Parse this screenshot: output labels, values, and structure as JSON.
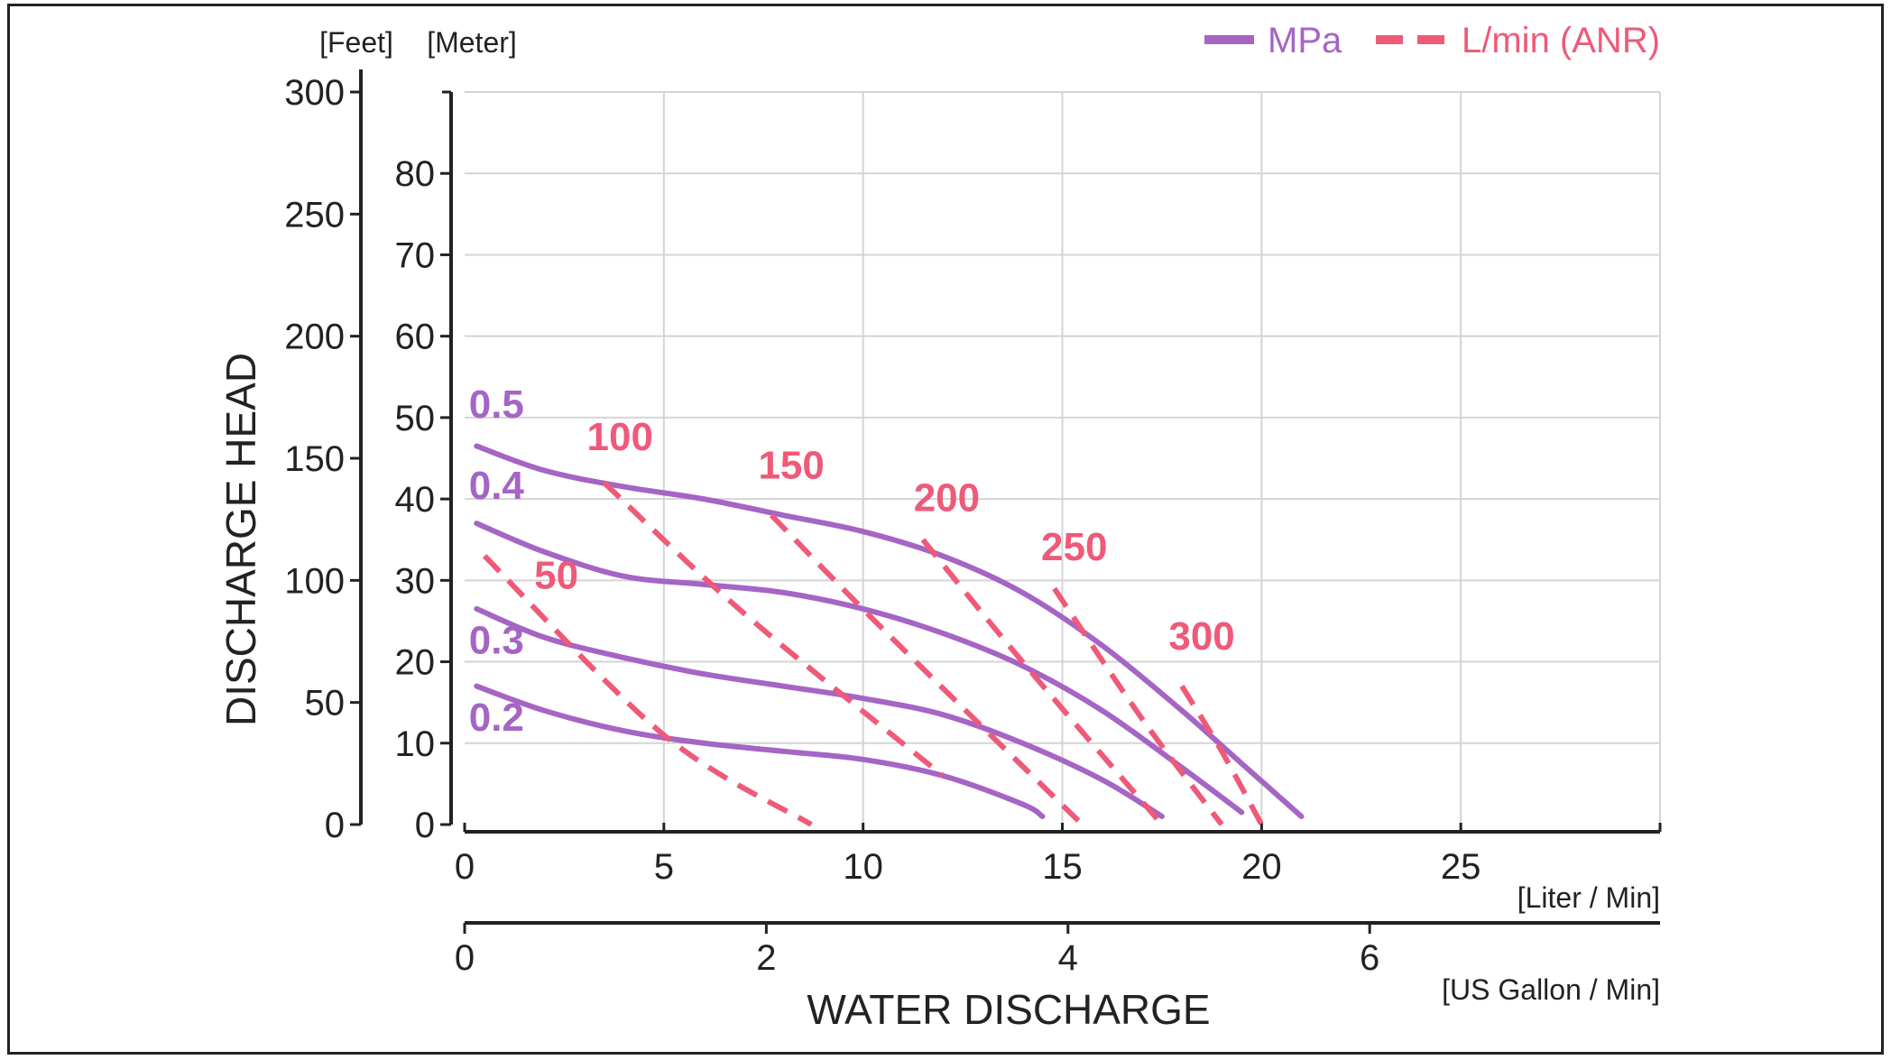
{
  "chart_data": {
    "type": "line",
    "xlabel": "WATER DISCHARGE",
    "ylabel": "DISCHARGE HEAD",
    "x_unit_primary": "[Liter / Min]",
    "x_unit_secondary": "[US Gallon / Min]",
    "y_unit_left": "[Feet]",
    "y_unit_right": "[Meter]",
    "x_ticks": [
      "0",
      "5",
      "10",
      "15",
      "20",
      "25"
    ],
    "x_range": [
      0,
      30
    ],
    "x2_ticks": [
      "0",
      "2",
      "4",
      "6"
    ],
    "x2_range": [
      0,
      7.925
    ],
    "y_ticks_meter": [
      "0",
      "10",
      "20",
      "30",
      "40",
      "50",
      "60",
      "70",
      "80"
    ],
    "y_range_meter": [
      0,
      90
    ],
    "y_ticks_feet": [
      "0",
      "50",
      "100",
      "150",
      "200",
      "250",
      "300"
    ],
    "y_range_feet": [
      0,
      300
    ],
    "grid": true,
    "legend": {
      "position": "top-right",
      "items": [
        {
          "label": "MPa",
          "style": "solid",
          "color": "#a565c4"
        },
        {
          "label": "L/min (ANR)",
          "style": "dashed",
          "color": "#ee5a78"
        }
      ]
    },
    "series": [
      {
        "name": "0.5",
        "group": "MPa",
        "color": "#a565c4",
        "x": [
          0.3,
          2,
          4,
          6,
          8,
          10,
          12,
          14,
          16,
          18,
          19.5,
          21
        ],
        "y": [
          46.5,
          43.5,
          41.5,
          40,
          38,
          36,
          33,
          28.5,
          22,
          14,
          7.5,
          1
        ]
      },
      {
        "name": "0.4",
        "group": "MPa",
        "color": "#a565c4",
        "x": [
          0.3,
          2,
          4,
          6,
          8,
          10,
          12,
          14,
          16,
          18,
          19.5
        ],
        "y": [
          37,
          33.5,
          30.5,
          29.5,
          28.5,
          26.5,
          23.5,
          19.5,
          14,
          7,
          1.5
        ]
      },
      {
        "name": "0.3",
        "group": "MPa",
        "color": "#a565c4",
        "x": [
          0.3,
          2,
          4,
          6,
          8,
          10,
          12,
          14,
          16,
          17.5
        ],
        "y": [
          26.5,
          23,
          20.5,
          18.5,
          17,
          15.5,
          13.5,
          10,
          5.5,
          1
        ]
      },
      {
        "name": "0.2",
        "group": "MPa",
        "color": "#a565c4",
        "x": [
          0.3,
          2,
          4,
          6,
          8,
          10,
          12,
          14,
          14.5
        ],
        "y": [
          17,
          14,
          11.5,
          10,
          9,
          8,
          6,
          2.5,
          1
        ]
      },
      {
        "name": "50",
        "group": "L/min (ANR)",
        "color": "#ee5a78",
        "dashed": true,
        "x": [
          0.5,
          5,
          8.7
        ],
        "y": [
          33,
          11,
          0
        ]
      },
      {
        "name": "100",
        "group": "L/min (ANR)",
        "color": "#ee5a78",
        "dashed": true,
        "x": [
          3.5,
          7,
          12
        ],
        "y": [
          42,
          26,
          6
        ]
      },
      {
        "name": "150",
        "group": "L/min (ANR)",
        "color": "#ee5a78",
        "dashed": true,
        "x": [
          7.7,
          10.5,
          15.5
        ],
        "y": [
          38,
          24,
          0
        ]
      },
      {
        "name": "200",
        "group": "L/min (ANR)",
        "color": "#ee5a78",
        "dashed": true,
        "x": [
          11.5,
          14,
          17.5
        ],
        "y": [
          35,
          20,
          0
        ]
      },
      {
        "name": "250",
        "group": "L/min (ANR)",
        "color": "#ee5a78",
        "dashed": true,
        "x": [
          14.8,
          17,
          19
        ],
        "y": [
          29,
          13,
          0
        ]
      },
      {
        "name": "300",
        "group": "L/min (ANR)",
        "color": "#ee5a78",
        "dashed": true,
        "x": [
          18,
          19,
          20
        ],
        "y": [
          17,
          9,
          0
        ]
      }
    ],
    "curve_labels": [
      {
        "text": "0.5",
        "color": "#a565c4",
        "x": 0.8,
        "y": 50
      },
      {
        "text": "0.4",
        "color": "#a565c4",
        "x": 0.8,
        "y": 40
      },
      {
        "text": "0.3",
        "color": "#a565c4",
        "x": 0.8,
        "y": 21
      },
      {
        "text": "0.2",
        "color": "#a565c4",
        "x": 0.8,
        "y": 11.5
      },
      {
        "text": "50",
        "color": "#ee5a78",
        "x": 2.3,
        "y": 29
      },
      {
        "text": "100",
        "color": "#ee5a78",
        "x": 3.9,
        "y": 46
      },
      {
        "text": "150",
        "color": "#ee5a78",
        "x": 8.2,
        "y": 42.5
      },
      {
        "text": "200",
        "color": "#ee5a78",
        "x": 12.1,
        "y": 38.5
      },
      {
        "text": "250",
        "color": "#ee5a78",
        "x": 15.3,
        "y": 32.5
      },
      {
        "text": "300",
        "color": "#ee5a78",
        "x": 18.5,
        "y": 21.5
      }
    ]
  }
}
